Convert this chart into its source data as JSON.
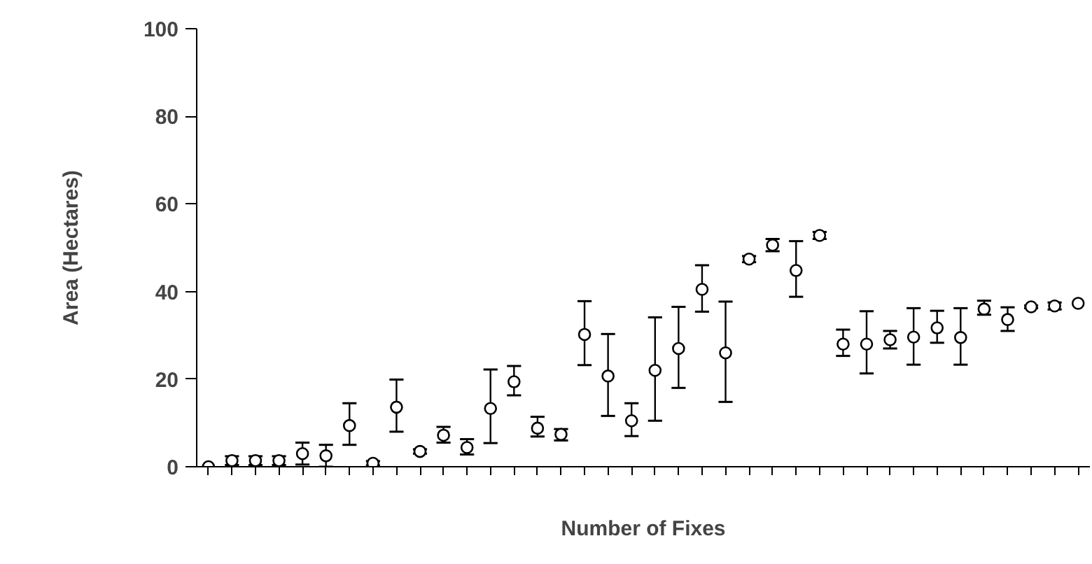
{
  "chart_data": {
    "type": "scatter",
    "xlabel": "Number of Fixes",
    "ylabel": "Area (Hectares)",
    "categories": [
      null,
      null,
      null,
      null,
      null,
      null,
      null,
      null,
      null,
      null,
      null,
      null,
      null,
      null,
      null,
      null,
      null,
      null,
      null,
      null,
      null,
      null,
      null,
      null,
      null,
      null,
      null,
      null,
      null,
      null,
      null,
      null,
      null,
      null,
      null,
      null,
      null,
      null
    ],
    "values": [
      0,
      1.4,
      1.4,
      1.4,
      3,
      2.5,
      9.4,
      0.8,
      13.6,
      3.5,
      7.2,
      4.4,
      13.3,
      19.4,
      8.8,
      7.4,
      30.2,
      20.7,
      10.5,
      22,
      27,
      40.5,
      26,
      47.4,
      50.6,
      44.8,
      52.8,
      28,
      28,
      29,
      29.6,
      31.7,
      29.5,
      36,
      33.6,
      36.5,
      36.7,
      37.3
    ],
    "errors": [
      null,
      1,
      1,
      1,
      2.5,
      2.5,
      [
        5,
        14.5
      ],
      0.5,
      [
        8,
        19.9
      ],
      0.5,
      [
        5.5,
        9.1
      ],
      [
        2.8,
        6.3
      ],
      [
        5.4,
        22.2
      ],
      [
        16.3,
        23
      ],
      [
        6.9,
        11.4
      ],
      [
        6,
        8.6
      ],
      [
        23.2,
        37.8
      ],
      [
        11.6,
        30.3
      ],
      [
        7,
        14.5
      ],
      [
        10.5,
        34.1
      ],
      [
        18,
        36.5
      ],
      [
        35.4,
        46
      ],
      [
        14.8,
        37.7
      ],
      0.7,
      1.4,
      [
        38.8,
        51.5
      ],
      0.8,
      [
        25.3,
        31.3
      ],
      [
        21.3,
        35.5
      ],
      [
        27,
        31
      ],
      [
        23.3,
        36.2
      ],
      [
        28.3,
        35.6
      ],
      [
        23.3,
        36.2
      ],
      [
        34.7,
        37.9
      ],
      [
        31,
        36.4
      ],
      0.3,
      0.8,
      null
    ],
    "color": "#000000",
    "marker": "circle",
    "ylim": [
      0,
      100
    ],
    "yticks": [
      0,
      20,
      40,
      60,
      80,
      100
    ],
    "grid": false,
    "tick_labels": "y"
  }
}
